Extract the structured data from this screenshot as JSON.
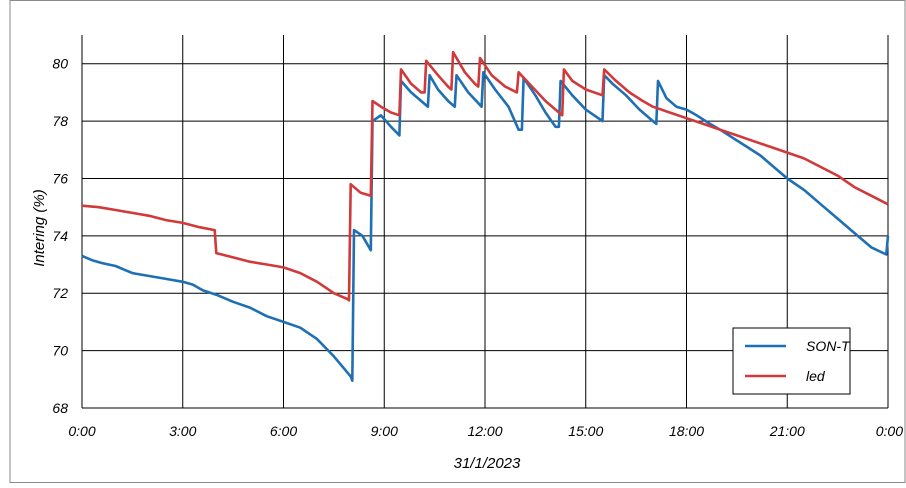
{
  "chart_data": {
    "type": "line",
    "title": "",
    "xlabel": "31/1/2023",
    "ylabel": "Intering (%)",
    "x_tick_labels": [
      "0:00",
      "3:00",
      "6:00",
      "9:00",
      "12:00",
      "15:00",
      "18:00",
      "21:00",
      "0:00"
    ],
    "x_range_hours": [
      0,
      24
    ],
    "y_ticks": [
      68,
      70,
      72,
      74,
      76,
      78,
      80
    ],
    "ylim": [
      68,
      81
    ],
    "grid": true,
    "legend_position": "bottom-right",
    "series": [
      {
        "name": "SON-T",
        "color": "#1f6fb4",
        "points": [
          [
            0,
            73.3
          ],
          [
            0.3,
            73.15
          ],
          [
            0.6,
            73.05
          ],
          [
            1.0,
            72.95
          ],
          [
            1.3,
            72.8
          ],
          [
            1.5,
            72.7
          ],
          [
            2.0,
            72.6
          ],
          [
            2.5,
            72.5
          ],
          [
            3.0,
            72.4
          ],
          [
            3.3,
            72.3
          ],
          [
            3.6,
            72.1
          ],
          [
            4.0,
            71.95
          ],
          [
            4.5,
            71.7
          ],
          [
            5.0,
            71.5
          ],
          [
            5.5,
            71.2
          ],
          [
            6.0,
            71.0
          ],
          [
            6.5,
            70.8
          ],
          [
            7.0,
            70.4
          ],
          [
            7.5,
            69.8
          ],
          [
            8.0,
            69.1
          ],
          [
            8.05,
            68.95
          ],
          [
            8.1,
            74.2
          ],
          [
            8.35,
            74.0
          ],
          [
            8.6,
            73.5
          ],
          [
            8.65,
            78.0
          ],
          [
            8.9,
            78.2
          ],
          [
            9.2,
            77.8
          ],
          [
            9.45,
            77.5
          ],
          [
            9.5,
            79.4
          ],
          [
            9.8,
            79.0
          ],
          [
            10.1,
            78.7
          ],
          [
            10.3,
            78.5
          ],
          [
            10.35,
            79.6
          ],
          [
            10.6,
            79.1
          ],
          [
            10.9,
            78.7
          ],
          [
            11.1,
            78.5
          ],
          [
            11.15,
            79.6
          ],
          [
            11.5,
            79.0
          ],
          [
            11.9,
            78.5
          ],
          [
            11.95,
            79.7
          ],
          [
            12.3,
            79.1
          ],
          [
            12.7,
            78.5
          ],
          [
            13.0,
            77.7
          ],
          [
            13.1,
            77.7
          ],
          [
            13.15,
            79.5
          ],
          [
            13.5,
            78.9
          ],
          [
            13.8,
            78.3
          ],
          [
            14.1,
            77.8
          ],
          [
            14.2,
            77.8
          ],
          [
            14.25,
            79.4
          ],
          [
            14.6,
            78.9
          ],
          [
            15.0,
            78.4
          ],
          [
            15.5,
            78.0
          ],
          [
            15.55,
            79.6
          ],
          [
            15.8,
            79.3
          ],
          [
            16.2,
            78.9
          ],
          [
            16.6,
            78.4
          ],
          [
            17.0,
            78.0
          ],
          [
            17.1,
            77.9
          ],
          [
            17.15,
            79.4
          ],
          [
            17.4,
            78.8
          ],
          [
            17.7,
            78.5
          ],
          [
            18.0,
            78.4
          ],
          [
            18.3,
            78.2
          ],
          [
            18.7,
            77.9
          ],
          [
            19.0,
            77.7
          ],
          [
            19.4,
            77.4
          ],
          [
            19.8,
            77.1
          ],
          [
            20.2,
            76.8
          ],
          [
            20.6,
            76.4
          ],
          [
            21.0,
            76.0
          ],
          [
            21.5,
            75.6
          ],
          [
            22.0,
            75.1
          ],
          [
            22.5,
            74.6
          ],
          [
            23.0,
            74.1
          ],
          [
            23.5,
            73.6
          ],
          [
            23.95,
            73.35
          ],
          [
            24.0,
            74.0
          ]
        ]
      },
      {
        "name": "led",
        "color": "#d03a3a",
        "points": [
          [
            0,
            75.05
          ],
          [
            0.5,
            75.0
          ],
          [
            1.0,
            74.9
          ],
          [
            1.5,
            74.8
          ],
          [
            2.0,
            74.7
          ],
          [
            2.5,
            74.55
          ],
          [
            3.0,
            74.45
          ],
          [
            3.5,
            74.3
          ],
          [
            3.95,
            74.2
          ],
          [
            4.0,
            73.4
          ],
          [
            4.5,
            73.25
          ],
          [
            5.0,
            73.1
          ],
          [
            5.5,
            73.0
          ],
          [
            6.0,
            72.9
          ],
          [
            6.5,
            72.7
          ],
          [
            7.0,
            72.4
          ],
          [
            7.5,
            72.0
          ],
          [
            7.9,
            71.8
          ],
          [
            7.95,
            71.75
          ],
          [
            8.0,
            75.8
          ],
          [
            8.3,
            75.5
          ],
          [
            8.6,
            75.4
          ],
          [
            8.65,
            78.7
          ],
          [
            8.9,
            78.5
          ],
          [
            9.2,
            78.3
          ],
          [
            9.45,
            78.2
          ],
          [
            9.5,
            79.8
          ],
          [
            9.8,
            79.3
          ],
          [
            10.1,
            79.0
          ],
          [
            10.2,
            79.0
          ],
          [
            10.25,
            80.1
          ],
          [
            10.6,
            79.6
          ],
          [
            10.9,
            79.2
          ],
          [
            11.0,
            79.1
          ],
          [
            11.05,
            80.4
          ],
          [
            11.4,
            79.7
          ],
          [
            11.7,
            79.3
          ],
          [
            11.8,
            79.2
          ],
          [
            11.85,
            80.2
          ],
          [
            12.2,
            79.6
          ],
          [
            12.6,
            79.2
          ],
          [
            12.95,
            79.0
          ],
          [
            13.0,
            79.7
          ],
          [
            13.4,
            79.2
          ],
          [
            13.8,
            78.7
          ],
          [
            14.2,
            78.3
          ],
          [
            14.3,
            78.2
          ],
          [
            14.35,
            79.8
          ],
          [
            14.6,
            79.4
          ],
          [
            15.0,
            79.1
          ],
          [
            15.5,
            78.9
          ],
          [
            15.55,
            79.8
          ],
          [
            15.9,
            79.4
          ],
          [
            16.3,
            79.0
          ],
          [
            16.7,
            78.7
          ],
          [
            17.0,
            78.5
          ],
          [
            17.5,
            78.3
          ],
          [
            18.0,
            78.1
          ],
          [
            18.5,
            77.9
          ],
          [
            19.0,
            77.7
          ],
          [
            19.5,
            77.5
          ],
          [
            20.0,
            77.3
          ],
          [
            20.5,
            77.1
          ],
          [
            21.0,
            76.9
          ],
          [
            21.5,
            76.7
          ],
          [
            22.0,
            76.4
          ],
          [
            22.5,
            76.1
          ],
          [
            23.0,
            75.7
          ],
          [
            23.5,
            75.4
          ],
          [
            24.0,
            75.1
          ]
        ]
      }
    ]
  }
}
